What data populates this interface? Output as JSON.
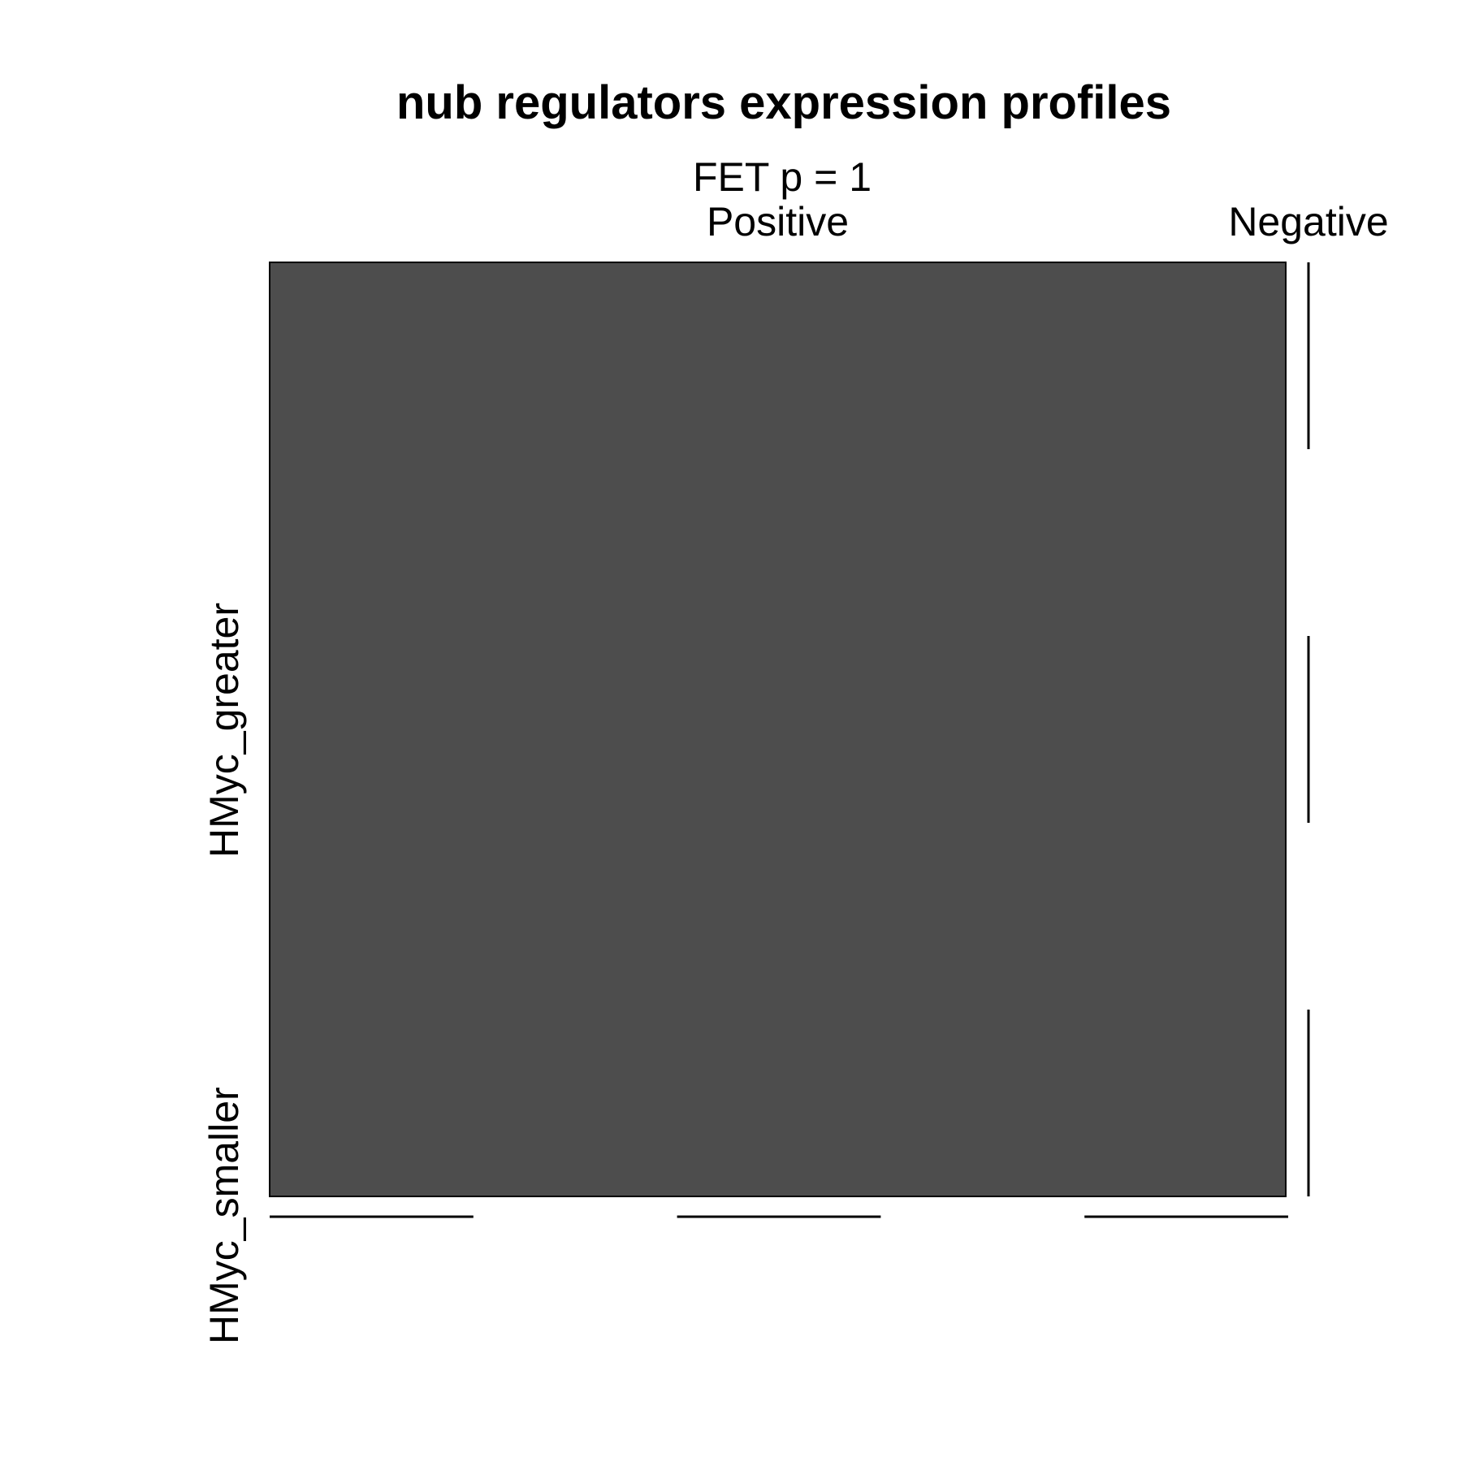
{
  "chart_data": {
    "type": "bar",
    "title": "nub regulators expression profiles",
    "subtitle": "FET p = 1",
    "x_categories": [
      "Positive",
      "Negative"
    ],
    "y_categories": [
      "HMyc_smaller",
      "HMyc_greater"
    ],
    "series": [
      {
        "name": "HMyc_smaller",
        "values": [
          1,
          0
        ]
      },
      {
        "name": "HMyc_greater",
        "values": [
          0,
          0
        ]
      }
    ],
    "fill_color": "#4d4d4d",
    "border_color": "#000000",
    "grid": false,
    "legend": "none"
  }
}
